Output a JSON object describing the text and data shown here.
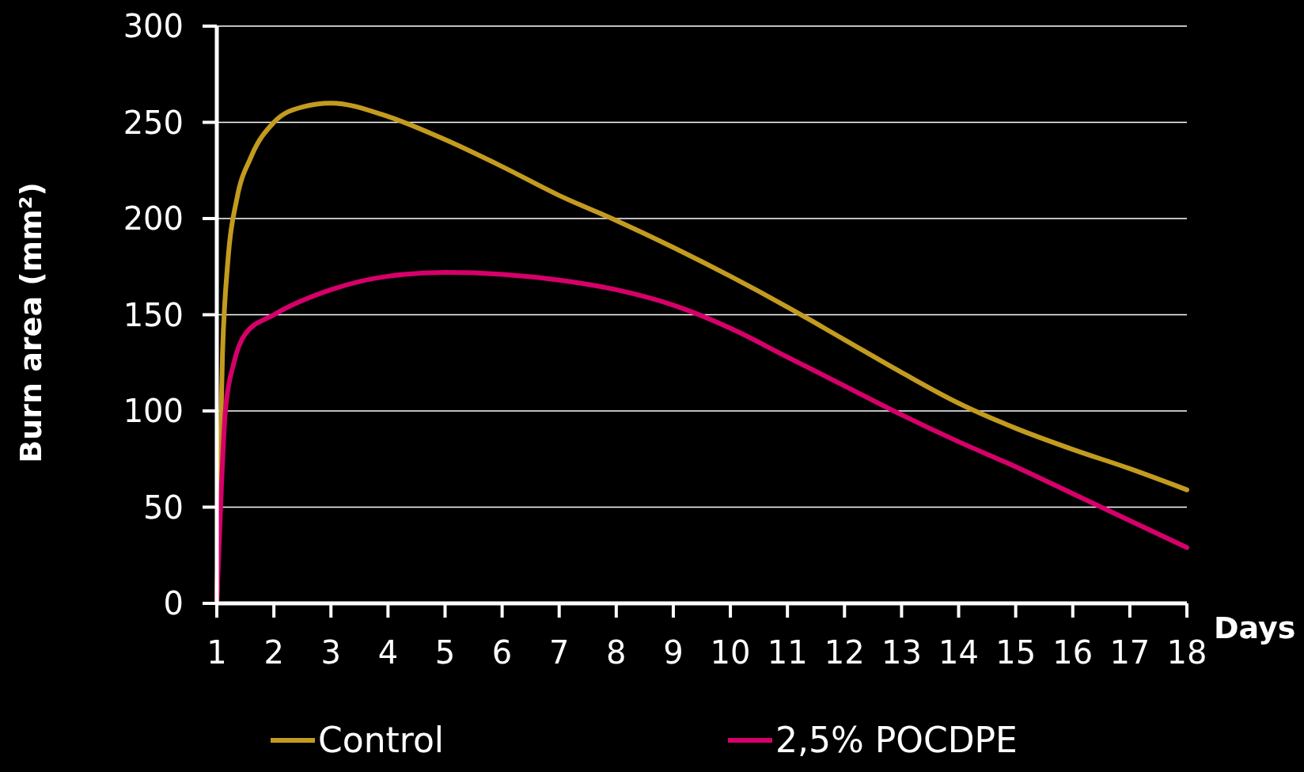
{
  "chart_data": {
    "type": "line",
    "xlabel": "Days",
    "ylabel": "Burn area (mm²)",
    "xlim": [
      1,
      18
    ],
    "xticks": [
      1,
      2,
      3,
      4,
      5,
      6,
      7,
      8,
      9,
      10,
      11,
      12,
      13,
      14,
      15,
      16,
      17,
      18
    ],
    "ylim": [
      0,
      300
    ],
    "yticks": [
      0,
      50,
      100,
      150,
      200,
      250,
      300
    ],
    "grid": "y",
    "legend": "bottom",
    "marker": "none",
    "line_style": "solid",
    "series": [
      {
        "name": "Control",
        "color": "#c39b1f",
        "x": [
          1,
          1.1,
          1.2,
          1.35,
          1.6,
          2,
          2.5,
          3,
          4,
          5,
          6,
          7,
          8,
          9,
          10,
          11,
          12,
          13,
          14,
          15,
          16,
          17,
          18
        ],
        "values": [
          0,
          130,
          180,
          210,
          232,
          250,
          258,
          260,
          253,
          241,
          227,
          212,
          199,
          185,
          170,
          154,
          137,
          120,
          104,
          91,
          80,
          70,
          59
        ]
      },
      {
        "name": "2,5% POCDPE",
        "color": "#d6006a",
        "x": [
          1,
          1.08,
          1.15,
          1.3,
          1.5,
          2,
          3,
          4,
          5,
          6,
          7,
          8,
          9,
          10,
          11,
          12,
          13,
          14,
          15,
          16,
          17,
          18
        ],
        "values": [
          0,
          60,
          100,
          125,
          140,
          150,
          163,
          170,
          172,
          171,
          168,
          163,
          155,
          143,
          128,
          113,
          98,
          84,
          71,
          57,
          43,
          29
        ]
      }
    ]
  }
}
